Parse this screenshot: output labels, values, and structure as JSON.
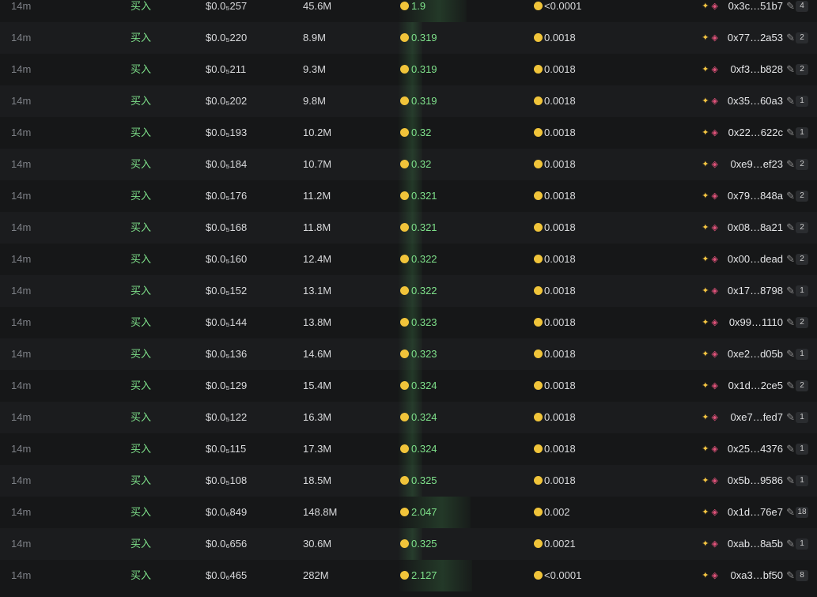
{
  "trades": {
    "rows": [
      [
        "14m",
        "买入",
        "$0.0₅257",
        "45.6M",
        "1.9",
        "<0.0001",
        "0x3c…51b7",
        "4"
      ],
      [
        "14m",
        "买入",
        "$0.0₅220",
        "8.9M",
        "0.319",
        "0.0018",
        "0x77…2a53",
        "2"
      ],
      [
        "14m",
        "买入",
        "$0.0₅211",
        "9.3M",
        "0.319",
        "0.0018",
        "0xf3…b828",
        "2"
      ],
      [
        "14m",
        "买入",
        "$0.0₅202",
        "9.8M",
        "0.319",
        "0.0018",
        "0x35…60a3",
        "1"
      ],
      [
        "14m",
        "买入",
        "$0.0₅193",
        "10.2M",
        "0.32",
        "0.0018",
        "0x22…622c",
        "1"
      ],
      [
        "14m",
        "买入",
        "$0.0₅184",
        "10.7M",
        "0.32",
        "0.0018",
        "0xe9…ef23",
        "2"
      ],
      [
        "14m",
        "买入",
        "$0.0₅176",
        "11.2M",
        "0.321",
        "0.0018",
        "0x79…848a",
        "2"
      ],
      [
        "14m",
        "买入",
        "$0.0₅168",
        "11.8M",
        "0.321",
        "0.0018",
        "0x08…8a21",
        "2"
      ],
      [
        "14m",
        "买入",
        "$0.0₅160",
        "12.4M",
        "0.322",
        "0.0018",
        "0x00…dead",
        "2"
      ],
      [
        "14m",
        "买入",
        "$0.0₅152",
        "13.1M",
        "0.322",
        "0.0018",
        "0x17…8798",
        "1"
      ],
      [
        "14m",
        "买入",
        "$0.0₅144",
        "13.8M",
        "0.323",
        "0.0018",
        "0x99…1110",
        "2"
      ],
      [
        "14m",
        "买入",
        "$0.0₅136",
        "14.6M",
        "0.323",
        "0.0018",
        "0xe2…d05b",
        "1"
      ],
      [
        "14m",
        "买入",
        "$0.0₅129",
        "15.4M",
        "0.324",
        "0.0018",
        "0x1d…2ce5",
        "2"
      ],
      [
        "14m",
        "买入",
        "$0.0₅122",
        "16.3M",
        "0.324",
        "0.0018",
        "0xe7…fed7",
        "1"
      ],
      [
        "14m",
        "买入",
        "$0.0₅115",
        "17.3M",
        "0.324",
        "0.0018",
        "0x25…4376",
        "1"
      ],
      [
        "14m",
        "买入",
        "$0.0₅108",
        "18.5M",
        "0.325",
        "0.0018",
        "0x5b…9586",
        "1"
      ],
      [
        "14m",
        "买入",
        "$0.0₆849",
        "148.8M",
        "2.047",
        "0.002",
        "0x1d…76e7",
        "18"
      ],
      [
        "14m",
        "买入",
        "$0.0₆656",
        "30.6M",
        "0.325",
        "0.0021",
        "0xab…8a5b",
        "1"
      ],
      [
        "14m",
        "买入",
        "$0.0₆465",
        "282M",
        "2.127",
        "<0.0001",
        "0xa3…bf50",
        "8"
      ]
    ]
  }
}
